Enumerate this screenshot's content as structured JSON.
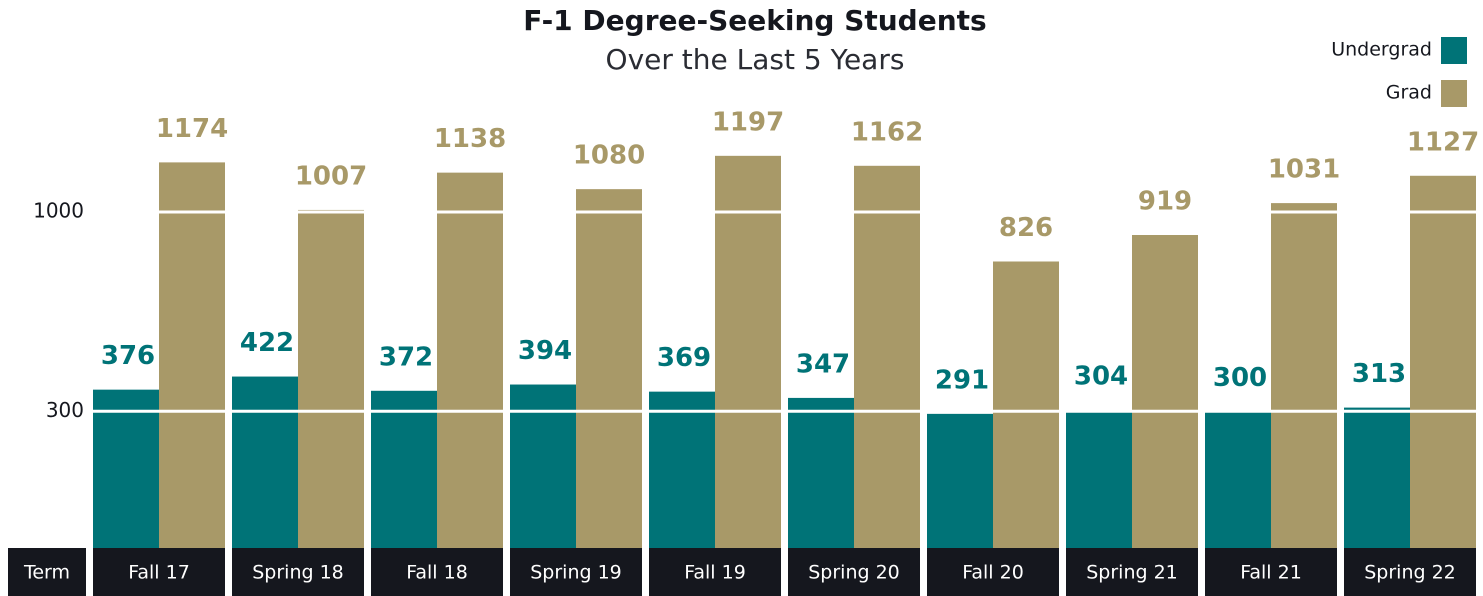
{
  "chart_data": {
    "type": "bar",
    "title": "F-1 Degree-Seeking Students",
    "subtitle": "Over the Last 5 Years",
    "x_label": "Term",
    "categories": [
      "Fall 17",
      "Spring 18",
      "Fall 18",
      "Spring 19",
      "Fall 19",
      "Spring 20",
      "Fall 20",
      "Spring 21",
      "Fall 21",
      "Spring 22"
    ],
    "series": [
      {
        "name": "Undergrad",
        "color": "#007377",
        "values": [
          376,
          422,
          372,
          394,
          369,
          347,
          291,
          304,
          300,
          313
        ]
      },
      {
        "name": "Grad",
        "color": "#a89968",
        "values": [
          1174,
          1007,
          1138,
          1080,
          1197,
          1162,
          826,
          919,
          1031,
          1127
        ]
      }
    ],
    "ylim": [
      -180,
      1300
    ],
    "yticks": [
      300,
      1000
    ],
    "grid": true,
    "legend": "top-right"
  }
}
